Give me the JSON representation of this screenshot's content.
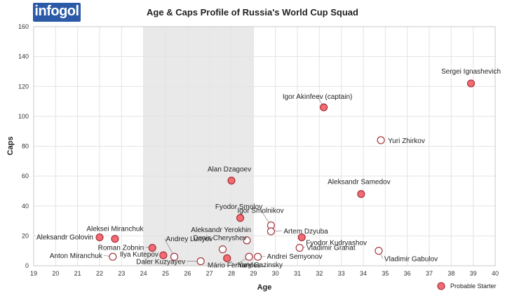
{
  "logo_text": "infogol",
  "colors": {
    "starter": "#f26b73",
    "other": "#ffffff",
    "stroke": "#a02830",
    "band": "#e9e9e9",
    "grid": "#e3e3e3"
  },
  "chart_data": {
    "type": "scatter",
    "title": "Age & Caps Profile of Russia's World Cup Squad",
    "xlabel": "Age",
    "ylabel": "Caps",
    "xlim": [
      19,
      40
    ],
    "ylim": [
      0,
      160
    ],
    "x_ticks": [
      "19",
      "20",
      "21",
      "22",
      "23",
      "24",
      "25",
      "26",
      "27",
      "28",
      "29",
      "30",
      "31",
      "32",
      "33",
      "34",
      "35",
      "36",
      "37",
      "38",
      "39",
      "40"
    ],
    "y_ticks": [
      "0",
      "20",
      "40",
      "60",
      "80",
      "100",
      "120",
      "140",
      "160"
    ],
    "shaded_band": [
      24,
      29
    ],
    "grid": true,
    "legend": {
      "position": "bottom-right",
      "label": "Probable Starter"
    },
    "points": [
      {
        "name": "Sergei Ignashevich",
        "age": 38.9,
        "caps": 122,
        "starter": true
      },
      {
        "name": "Igor Akinfeev (captain)",
        "age": 32.2,
        "caps": 106,
        "starter": true
      },
      {
        "name": "Yuri Zhirkov",
        "age": 34.8,
        "caps": 84,
        "starter": false
      },
      {
        "name": "Alan Dzagoev",
        "age": 28.0,
        "caps": 57,
        "starter": true
      },
      {
        "name": "Aleksandr Samedov",
        "age": 33.9,
        "caps": 48,
        "starter": true
      },
      {
        "name": "Fyodor Smolov",
        "age": 28.4,
        "caps": 32,
        "starter": true
      },
      {
        "name": "Igor Smolnikov",
        "age": 29.8,
        "caps": 27,
        "starter": false
      },
      {
        "name": "Artem Dzyuba",
        "age": 29.8,
        "caps": 23,
        "starter": false
      },
      {
        "name": "Aleksandr Yerokhin",
        "age": 28.7,
        "caps": 17,
        "starter": false
      },
      {
        "name": "Fyodor Kudryashov",
        "age": 31.2,
        "caps": 19,
        "starter": true
      },
      {
        "name": "Aleksei Miranchuk",
        "age": 22.7,
        "caps": 18,
        "starter": true
      },
      {
        "name": "Aleksandr Golovin",
        "age": 22.0,
        "caps": 19,
        "starter": true
      },
      {
        "name": "Roman Zobnin",
        "age": 24.4,
        "caps": 12,
        "starter": true
      },
      {
        "name": "Denis Cheryshev",
        "age": 27.6,
        "caps": 11,
        "starter": false
      },
      {
        "name": "Yury Gazinsky",
        "age": 28.8,
        "caps": 6,
        "starter": false
      },
      {
        "name": "Vladimir Granat",
        "age": 31.1,
        "caps": 12,
        "starter": false
      },
      {
        "name": "Vladimir Gabulov",
        "age": 34.7,
        "caps": 10,
        "starter": false
      },
      {
        "name": "Anton Miranchuk",
        "age": 22.6,
        "caps": 6,
        "starter": false
      },
      {
        "name": "Ilya Kutepov",
        "age": 24.9,
        "caps": 7,
        "starter": true
      },
      {
        "name": "Andrey Lunyov",
        "age": 25.4,
        "caps": 6,
        "starter": false
      },
      {
        "name": "Daler Kuzyayev",
        "age": 26.6,
        "caps": 3,
        "starter": false
      },
      {
        "name": "Mário Fernandes",
        "age": 27.8,
        "caps": 5,
        "starter": true
      },
      {
        "name": "Andrei Semyonov",
        "age": 29.2,
        "caps": 6,
        "starter": false
      }
    ]
  }
}
